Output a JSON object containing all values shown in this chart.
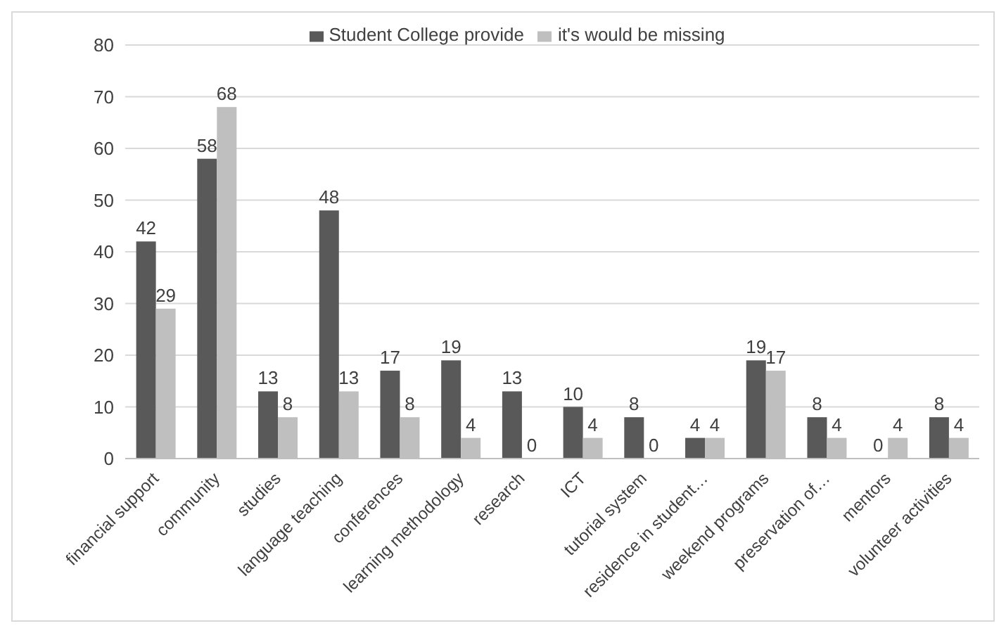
{
  "chart_data": {
    "type": "bar",
    "categories": [
      "financial support",
      "community",
      "studies",
      "language teaching",
      "conferences",
      "learning methodology",
      "research",
      "ICT",
      "tutorial system",
      "residence in student…",
      "weekend programs",
      "preservation of…",
      "mentors",
      "volunteer activities"
    ],
    "series": [
      {
        "name": "Student College provide",
        "color": "#595959",
        "values": [
          42,
          58,
          13,
          48,
          17,
          19,
          13,
          10,
          8,
          4,
          19,
          8,
          0,
          8
        ]
      },
      {
        "name": "it's would be missing",
        "color": "#bfbfbf",
        "values": [
          29,
          68,
          8,
          13,
          8,
          4,
          0,
          4,
          0,
          4,
          17,
          4,
          4,
          4
        ]
      }
    ],
    "ylim": [
      0,
      80
    ],
    "yticks": [
      0,
      10,
      20,
      30,
      40,
      50,
      60,
      70,
      80
    ],
    "grid": "y",
    "legend": "top",
    "data_labels": true
  }
}
